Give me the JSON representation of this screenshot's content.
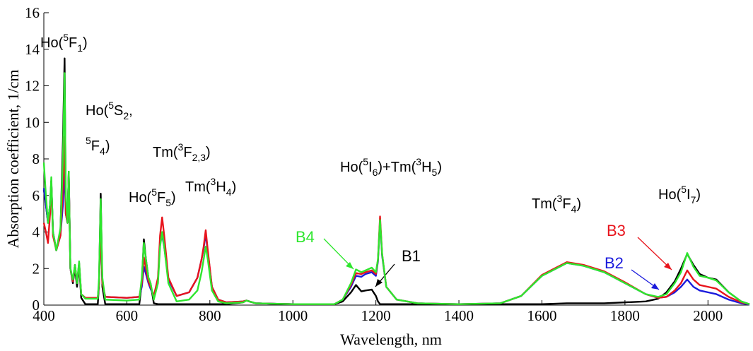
{
  "chart_data": {
    "type": "line",
    "xlabel": "Wavelength, nm",
    "ylabel": "Absorption coefficient, 1/cm",
    "xlim": [
      400,
      2100
    ],
    "ylim": [
      0,
      16
    ],
    "xticks": [
      400,
      600,
      800,
      1000,
      1200,
      1400,
      1600,
      1800,
      2000
    ],
    "yticks": [
      0,
      2,
      4,
      6,
      8,
      10,
      12,
      14,
      16
    ],
    "grid": false,
    "x": [
      400,
      405,
      410,
      415,
      418,
      422,
      430,
      440,
      446,
      450,
      453,
      457,
      460,
      464,
      470,
      475,
      480,
      485,
      490,
      500,
      530,
      533,
      537,
      541,
      548,
      600,
      630,
      636,
      641,
      646,
      652,
      657,
      665,
      675,
      680,
      685,
      690,
      700,
      720,
      750,
      770,
      780,
      785,
      790,
      795,
      805,
      820,
      840,
      880,
      888,
      895,
      910,
      1000,
      1100,
      1120,
      1140,
      1152,
      1165,
      1175,
      1190,
      1200,
      1205,
      1210,
      1215,
      1225,
      1250,
      1300,
      1400,
      1500,
      1550,
      1600,
      1660,
      1700,
      1750,
      1800,
      1850,
      1880,
      1900,
      1920,
      1935,
      1950,
      1965,
      1980,
      2000,
      2020,
      2050,
      2080,
      2100
    ],
    "series": [
      {
        "name": "B1",
        "color": "#000000",
        "values": [
          6.3,
          5.5,
          4.5,
          5.5,
          6.8,
          4,
          3,
          4,
          9,
          13.5,
          5,
          4.5,
          7.3,
          2,
          1.2,
          2.0,
          1.0,
          2.2,
          0.4,
          0.05,
          0.05,
          1.2,
          6.1,
          1.0,
          0.05,
          0.05,
          0.05,
          1.2,
          3.6,
          2.5,
          1.5,
          1.2,
          0.1,
          0.05,
          0.05,
          0.05,
          0.05,
          0.05,
          0.05,
          0.05,
          0.05,
          0.05,
          0.05,
          0.05,
          0.05,
          0.05,
          0.05,
          0.05,
          0.15,
          0.25,
          0.2,
          0.1,
          0.05,
          0.05,
          0.2,
          0.7,
          1.1,
          0.75,
          0.8,
          0.85,
          0.5,
          0.2,
          0.05,
          0.05,
          0.05,
          0.05,
          0.05,
          0.05,
          0.05,
          0.05,
          0.05,
          0.1,
          0.1,
          0.1,
          0.15,
          0.2,
          0.35,
          0.7,
          1.3,
          2.0,
          2.8,
          2.2,
          1.7,
          1.5,
          1.4,
          0.7,
          0.2,
          0.05
        ]
      },
      {
        "name": "B2",
        "color": "#1a1adc",
        "values": [
          6.4,
          5.5,
          4.5,
          5.5,
          6.8,
          4,
          3,
          3.8,
          5.5,
          7.4,
          5,
          4.5,
          7.2,
          2,
          1.3,
          2.2,
          1.2,
          2.3,
          0.6,
          0.4,
          0.4,
          1.2,
          4.2,
          1.2,
          0.45,
          0.4,
          0.45,
          1.0,
          2.1,
          1.7,
          1.2,
          0.9,
          0.5,
          1.4,
          3.4,
          3.8,
          3.2,
          1.4,
          0.5,
          0.7,
          1.5,
          2.5,
          3.1,
          3.9,
          2.9,
          1.0,
          0.3,
          0.15,
          0.2,
          0.25,
          0.2,
          0.1,
          0.05,
          0.05,
          0.3,
          1.0,
          1.6,
          1.55,
          1.7,
          1.8,
          1.6,
          2.4,
          4.6,
          2.7,
          1.0,
          0.3,
          0.1,
          0.05,
          0.1,
          0.5,
          1.6,
          2.3,
          2.15,
          1.8,
          1.2,
          0.6,
          0.4,
          0.45,
          0.7,
          1.0,
          1.4,
          1.0,
          0.8,
          0.7,
          0.6,
          0.3,
          0.1,
          0.03
        ]
      },
      {
        "name": "B3",
        "color": "#e8141c",
        "values": [
          4.5,
          4.0,
          3.4,
          5,
          6.8,
          3.8,
          3,
          3.8,
          6.5,
          9.2,
          5,
          4.5,
          7.2,
          2,
          1.3,
          2.2,
          1.2,
          2.3,
          0.6,
          0.4,
          0.4,
          1.2,
          4.2,
          1.2,
          0.45,
          0.4,
          0.45,
          1.2,
          2.6,
          2.0,
          1.3,
          1.0,
          0.5,
          1.5,
          3.8,
          4.8,
          3.8,
          1.5,
          0.5,
          0.7,
          1.5,
          2.5,
          3.2,
          4.1,
          3.0,
          1.0,
          0.3,
          0.15,
          0.2,
          0.25,
          0.2,
          0.1,
          0.05,
          0.05,
          0.3,
          1.1,
          1.75,
          1.7,
          1.8,
          1.9,
          1.7,
          2.5,
          4.85,
          2.8,
          1.0,
          0.3,
          0.1,
          0.05,
          0.1,
          0.5,
          1.65,
          2.35,
          2.2,
          1.85,
          1.25,
          0.6,
          0.4,
          0.45,
          0.8,
          1.2,
          1.9,
          1.4,
          1.1,
          1.0,
          0.9,
          0.45,
          0.15,
          0.05
        ]
      },
      {
        "name": "B4",
        "color": "#2ee62e",
        "values": [
          7.8,
          6,
          4.5,
          5.5,
          7,
          4,
          3,
          4.2,
          8,
          12.7,
          6,
          4.5,
          7.3,
          2,
          1.4,
          2.2,
          1.2,
          2.4,
          0.6,
          0.35,
          0.35,
          1.5,
          5.8,
          1.5,
          0.3,
          0.25,
          0.3,
          1.5,
          3.4,
          2.5,
          1.5,
          1.2,
          0.3,
          1.2,
          3.2,
          4.0,
          3.2,
          1.2,
          0.2,
          0.3,
          0.8,
          1.8,
          2.5,
          3.2,
          2.5,
          0.8,
          0.2,
          0.1,
          0.15,
          0.25,
          0.2,
          0.1,
          0.05,
          0.05,
          0.3,
          1.2,
          1.95,
          1.8,
          1.9,
          2.05,
          1.8,
          2.5,
          4.65,
          2.8,
          1.0,
          0.3,
          0.1,
          0.05,
          0.1,
          0.5,
          1.6,
          2.3,
          2.15,
          1.8,
          1.2,
          0.6,
          0.45,
          0.6,
          1.2,
          1.8,
          2.85,
          2.1,
          1.6,
          1.5,
          1.35,
          0.7,
          0.2,
          0.05
        ]
      }
    ],
    "annotations": [
      {
        "parts": [
          {
            "text": "Ho("
          },
          {
            "text": "5",
            "sup": true
          },
          {
            "text": "F"
          },
          {
            "text": "1",
            "sub": true
          },
          {
            "text": ")"
          }
        ]
      },
      {
        "parts": [
          {
            "text": "Ho("
          },
          {
            "text": "5",
            "sup": true
          },
          {
            "text": "S"
          },
          {
            "text": "2",
            "sub": true
          },
          {
            "text": ","
          }
        ]
      },
      {
        "parts": [
          {
            "text": "5",
            "sup": true
          },
          {
            "text": "F"
          },
          {
            "text": "4",
            "sub": true
          },
          {
            "text": ")"
          }
        ]
      },
      {
        "parts": [
          {
            "text": "Tm("
          },
          {
            "text": "3",
            "sup": true
          },
          {
            "text": "F"
          },
          {
            "text": "2,3",
            "sub": true
          },
          {
            "text": ")"
          }
        ]
      },
      {
        "parts": [
          {
            "text": "Ho("
          },
          {
            "text": "5",
            "sup": true
          },
          {
            "text": "F"
          },
          {
            "text": "5",
            "sub": true
          },
          {
            "text": ")"
          }
        ]
      },
      {
        "parts": [
          {
            "text": "Tm("
          },
          {
            "text": "3",
            "sup": true
          },
          {
            "text": "H"
          },
          {
            "text": "4",
            "sub": true
          },
          {
            "text": ")"
          }
        ]
      },
      {
        "parts": [
          {
            "text": "Ho("
          },
          {
            "text": "5",
            "sup": true
          },
          {
            "text": "I"
          },
          {
            "text": "6",
            "sub": true
          },
          {
            "text": ")+Tm("
          },
          {
            "text": "3",
            "sup": true
          },
          {
            "text": "H"
          },
          {
            "text": "5",
            "sub": true
          },
          {
            "text": ")"
          }
        ]
      },
      {
        "parts": [
          {
            "text": "Tm("
          },
          {
            "text": "3",
            "sup": true
          },
          {
            "text": "F"
          },
          {
            "text": "4",
            "sub": true
          },
          {
            "text": ")"
          }
        ]
      },
      {
        "parts": [
          {
            "text": "Ho("
          },
          {
            "text": "5",
            "sup": true
          },
          {
            "text": "I"
          },
          {
            "text": "7",
            "sub": true
          },
          {
            "text": ")"
          }
        ]
      }
    ]
  }
}
